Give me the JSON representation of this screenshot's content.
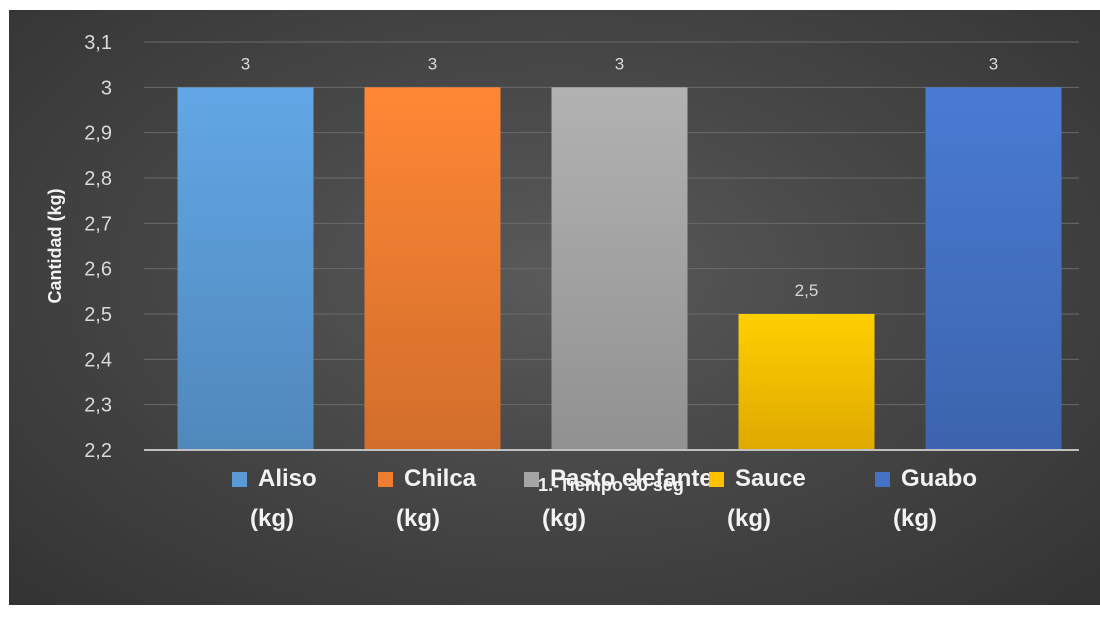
{
  "chart_data": {
    "type": "bar",
    "title": "",
    "ylabel": "Cantidad (kg)",
    "xlabel": "1.-Tiempo 30 seg",
    "ylim": [
      2.2,
      3.1
    ],
    "yticks": [
      "2,2",
      "2,3",
      "2,4",
      "2,5",
      "2,6",
      "2,7",
      "2,8",
      "2,9",
      "3",
      "3,1"
    ],
    "ytick_values": [
      2.2,
      2.3,
      2.4,
      2.5,
      2.6,
      2.7,
      2.8,
      2.9,
      3.0,
      3.1
    ],
    "grid": true,
    "legend_position": "bottom",
    "series": [
      {
        "name": "Aliso (kg)",
        "label_line1": "Aliso",
        "label_line2": "(kg)",
        "value": 3,
        "data_label": "3",
        "color": "#5b9bd5"
      },
      {
        "name": "Chilca (kg)",
        "label_line1": "Chilca",
        "label_line2": "(kg)",
        "value": 3,
        "data_label": "3",
        "color": "#ed7d31"
      },
      {
        "name": "Pasto elefante (kg)",
        "label_line1": "Pasto elefante",
        "label_line2": "(kg)",
        "value": 3,
        "data_label": "3",
        "color": "#a5a5a5"
      },
      {
        "name": "Sauce (kg)",
        "label_line1": "Sauce",
        "label_line2": "(kg)",
        "value": 2.5,
        "data_label": "2,5",
        "color": "#ffc000"
      },
      {
        "name": "Guabo (kg)",
        "label_line1": "Guabo",
        "label_line2": "(kg)",
        "value": 3,
        "data_label": "3",
        "color": "#4472c4"
      }
    ]
  }
}
